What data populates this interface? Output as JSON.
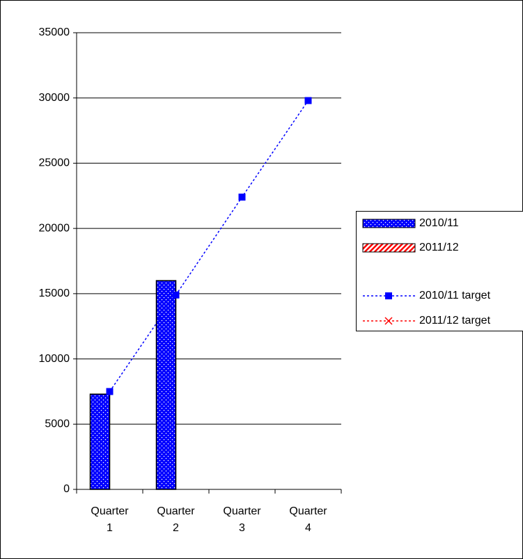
{
  "chart_data": {
    "type": "bar",
    "categories": [
      "Quarter 1",
      "Quarter 2",
      "Quarter 3",
      "Quarter 4"
    ],
    "series": [
      {
        "name": "2010/11",
        "type": "bar",
        "color": "#0000ff",
        "values": [
          7300,
          16000,
          null,
          null
        ]
      },
      {
        "name": "2011/12",
        "type": "bar",
        "color": "#ff0000",
        "values": [
          null,
          null,
          null,
          null
        ]
      },
      {
        "name": "2010/11 target",
        "type": "line",
        "color": "#0000ff",
        "values": [
          7500,
          14900,
          22400,
          29800
        ]
      },
      {
        "name": "2011/12 target",
        "type": "line",
        "color": "#ff0000",
        "values": [
          null,
          null,
          null,
          null
        ]
      }
    ],
    "ylim": [
      0,
      35000
    ],
    "yticks": [
      0,
      5000,
      10000,
      15000,
      20000,
      25000,
      30000,
      35000
    ],
    "grid": true,
    "legend": "right"
  }
}
